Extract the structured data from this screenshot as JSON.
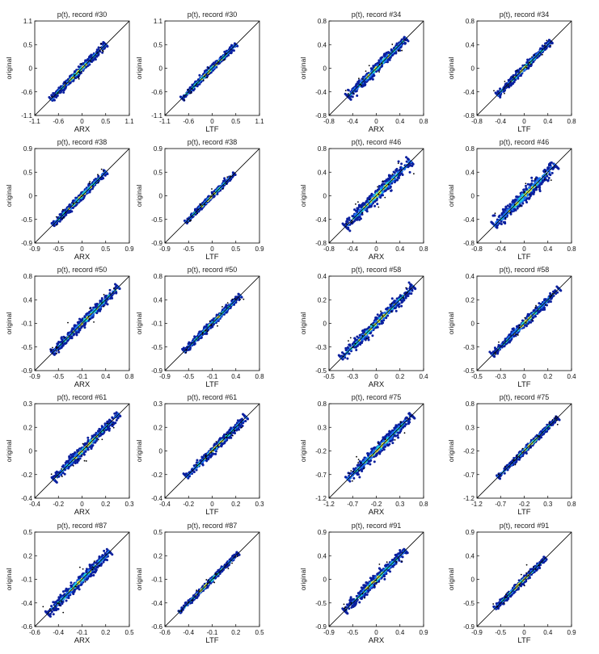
{
  "figure": {
    "rows": 5,
    "cols": 4
  },
  "colors": {
    "density_low": "#0a1f9e",
    "density_mid": "#1e6ff0",
    "density_high": "#22d1d6",
    "density_peak": "#e8f24a",
    "outlier": "#000000",
    "reference_line": "#000000",
    "axes": "#000000"
  },
  "chart_data": [
    {
      "type": "scatter",
      "title": "p(t), record #30",
      "xlabel": "ARX",
      "ylabel": "original",
      "xlim": [
        -1.1,
        1.1
      ],
      "ylim": [
        -1.1,
        1.1
      ],
      "xticks": [
        "-1.1",
        "-0.6",
        "0",
        "0.5",
        "1.1"
      ],
      "yticks": [
        "-1.1",
        "-0.6",
        "0",
        "0.5",
        "1.1"
      ],
      "grid": false,
      "reference_line": "y = x",
      "point_range": [
        -0.72,
        0.55
      ],
      "spread": 0.045
    },
    {
      "type": "scatter",
      "title": "p(t), record #30",
      "xlabel": "LTF",
      "ylabel": "original",
      "xlim": [
        -1.1,
        1.1
      ],
      "ylim": [
        -1.1,
        1.1
      ],
      "xticks": [
        "-1.1",
        "-0.6",
        "0",
        "0.5",
        "1.1"
      ],
      "yticks": [
        "-1.1",
        "-0.6",
        "0",
        "0.5",
        "1.1"
      ],
      "grid": false,
      "reference_line": "y = x",
      "point_range": [
        -0.7,
        0.55
      ],
      "spread": 0.035
    },
    {
      "type": "scatter",
      "title": "p(t), record #34",
      "xlabel": "ARX",
      "ylabel": "original",
      "xlim": [
        -0.8,
        0.8
      ],
      "ylim": [
        -0.8,
        0.8
      ],
      "xticks": [
        "-0.8",
        "-0.4",
        "0",
        "0.4",
        "0.8"
      ],
      "yticks": [
        "-0.8",
        "-0.4",
        "0",
        "0.4",
        "0.8"
      ],
      "grid": false,
      "reference_line": "y = x",
      "point_range": [
        -0.48,
        0.5
      ],
      "spread": 0.04
    },
    {
      "type": "scatter",
      "title": "p(t), record #34",
      "xlabel": "LTF",
      "ylabel": "original",
      "xlim": [
        -0.8,
        0.8
      ],
      "ylim": [
        -0.8,
        0.8
      ],
      "xticks": [
        "-0.8",
        "-0.4",
        "0",
        "0.4",
        "0.8"
      ],
      "yticks": [
        "-0.8",
        "-0.4",
        "0",
        "0.4",
        "0.8"
      ],
      "grid": false,
      "reference_line": "y = x",
      "point_range": [
        -0.45,
        0.45
      ],
      "spread": 0.03
    },
    {
      "type": "scatter",
      "title": "p(t), record #38",
      "xlabel": "ARX",
      "ylabel": "original",
      "xlim": [
        -0.9,
        0.9
      ],
      "ylim": [
        -0.9,
        0.9
      ],
      "xticks": [
        "-0.9",
        "-0.5",
        "0",
        "0.5",
        "0.9"
      ],
      "yticks": [
        "-0.9",
        "-0.5",
        "0",
        "0.5",
        "0.9"
      ],
      "grid": false,
      "reference_line": "y = x",
      "point_range": [
        -0.55,
        0.45
      ],
      "spread": 0.035
    },
    {
      "type": "scatter",
      "title": "p(t), record #38",
      "xlabel": "LTF",
      "ylabel": "original",
      "xlim": [
        -0.9,
        0.9
      ],
      "ylim": [
        -0.9,
        0.9
      ],
      "xticks": [
        "-0.9",
        "-0.5",
        "0",
        "0.5",
        "0.9"
      ],
      "yticks": [
        "-0.9",
        "-0.5",
        "0",
        "0.5",
        "0.9"
      ],
      "grid": false,
      "reference_line": "y = x",
      "point_range": [
        -0.5,
        0.42
      ],
      "spread": 0.025
    },
    {
      "type": "scatter",
      "title": "p(t), record #46",
      "xlabel": "ARX",
      "ylabel": "original",
      "xlim": [
        -0.8,
        0.8
      ],
      "ylim": [
        -0.8,
        0.8
      ],
      "xticks": [
        "-0.8",
        "-0.4",
        "0",
        "0.4",
        "0.8"
      ],
      "yticks": [
        "-0.8",
        "-0.4",
        "0",
        "0.4",
        "0.8"
      ],
      "grid": false,
      "reference_line": "y = x",
      "point_range": [
        -0.52,
        0.58
      ],
      "spread": 0.055
    },
    {
      "type": "scatter",
      "title": "p(t), record #46",
      "xlabel": "LTF",
      "ylabel": "original",
      "xlim": [
        -0.8,
        0.8
      ],
      "ylim": [
        -0.8,
        0.8
      ],
      "xticks": [
        "-0.8",
        "-0.4",
        "0",
        "0.4",
        "0.8"
      ],
      "yticks": [
        "-0.8",
        "-0.4",
        "0",
        "0.4",
        "0.8"
      ],
      "grid": false,
      "reference_line": "y = x",
      "point_range": [
        -0.5,
        0.52
      ],
      "spread": 0.06
    },
    {
      "type": "scatter",
      "title": "p(t), record #50",
      "xlabel": "ARX",
      "ylabel": "original",
      "xlim": [
        -0.9,
        0.8
      ],
      "ylim": [
        -0.9,
        0.8
      ],
      "xticks": [
        "-0.9",
        "-0.5",
        "-0.1",
        "0.4",
        "0.8"
      ],
      "yticks": [
        "-0.9",
        "-0.5",
        "-0.1",
        "0.4",
        "0.8"
      ],
      "grid": false,
      "reference_line": "y = x",
      "point_range": [
        -0.58,
        0.6
      ],
      "spread": 0.045
    },
    {
      "type": "scatter",
      "title": "p(t), record #50",
      "xlabel": "LTF",
      "ylabel": "original",
      "xlim": [
        -0.9,
        0.8
      ],
      "ylim": [
        -0.9,
        0.8
      ],
      "xticks": [
        "-0.9",
        "-0.5",
        "-0.1",
        "0.4",
        "0.8"
      ],
      "yticks": [
        "-0.9",
        "-0.5",
        "-0.1",
        "0.4",
        "0.8"
      ],
      "grid": false,
      "reference_line": "y = x",
      "point_range": [
        -0.55,
        0.45
      ],
      "spread": 0.03
    },
    {
      "type": "scatter",
      "title": "p(t), record #58",
      "xlabel": "ARX",
      "ylabel": "original",
      "xlim": [
        -0.5,
        0.4
      ],
      "ylim": [
        -0.5,
        0.4
      ],
      "xticks": [
        "-0.5",
        "-0.3",
        "0",
        "0.2",
        "0.4"
      ],
      "yticks": [
        "-0.5",
        "-0.3",
        "0",
        "0.2",
        "0.4"
      ],
      "grid": false,
      "reference_line": "y = x",
      "point_range": [
        -0.38,
        0.3
      ],
      "spread": 0.025
    },
    {
      "type": "scatter",
      "title": "p(t), record #58",
      "xlabel": "LTF",
      "ylabel": "original",
      "xlim": [
        -0.5,
        0.4
      ],
      "ylim": [
        -0.5,
        0.4
      ],
      "xticks": [
        "-0.5",
        "-0.3",
        "0",
        "0.2",
        "0.4"
      ],
      "yticks": [
        "-0.5",
        "-0.3",
        "0",
        "0.2",
        "0.4"
      ],
      "grid": false,
      "reference_line": "y = x",
      "point_range": [
        -0.35,
        0.28
      ],
      "spread": 0.02
    },
    {
      "type": "scatter",
      "title": "p(t), record #61",
      "xlabel": "ARX",
      "ylabel": "original",
      "xlim": [
        -0.4,
        0.3
      ],
      "ylim": [
        -0.4,
        0.3
      ],
      "xticks": [
        "-0.4",
        "-0.2",
        "0",
        "0.2",
        "0.3"
      ],
      "yticks": [
        "-0.4",
        "-0.2",
        "0",
        "0.2",
        "0.3"
      ],
      "grid": false,
      "reference_line": "y = x",
      "point_range": [
        -0.26,
        0.22
      ],
      "spread": 0.018
    },
    {
      "type": "scatter",
      "title": "p(t), record #61",
      "xlabel": "LTF",
      "ylabel": "original",
      "xlim": [
        -0.4,
        0.3
      ],
      "ylim": [
        -0.4,
        0.3
      ],
      "xticks": [
        "-0.4",
        "-0.2",
        "0",
        "0.2",
        "0.3"
      ],
      "yticks": [
        "-0.4",
        "-0.2",
        "0",
        "0.2",
        "0.3"
      ],
      "grid": false,
      "reference_line": "y = x",
      "point_range": [
        -0.24,
        0.2
      ],
      "spread": 0.015
    },
    {
      "type": "scatter",
      "title": "p(t), record #75",
      "xlabel": "ARX",
      "ylabel": "original",
      "xlim": [
        -1.2,
        0.8
      ],
      "ylim": [
        -1.2,
        0.8
      ],
      "xticks": [
        "-1.2",
        "-0.7",
        "-0.2",
        "0.3",
        "0.8"
      ],
      "yticks": [
        "-1.2",
        "-0.7",
        "-0.2",
        "0.3",
        "0.8"
      ],
      "grid": false,
      "reference_line": "y = x",
      "point_range": [
        -0.8,
        0.55
      ],
      "spread": 0.06
    },
    {
      "type": "scatter",
      "title": "p(t), record #75",
      "xlabel": "LTF",
      "ylabel": "original",
      "xlim": [
        -1.2,
        0.8
      ],
      "ylim": [
        -1.2,
        0.8
      ],
      "xticks": [
        "-1.2",
        "-0.7",
        "-0.2",
        "0.3",
        "0.8"
      ],
      "yticks": [
        "-1.2",
        "-0.7",
        "-0.2",
        "0.3",
        "0.8"
      ],
      "grid": false,
      "reference_line": "y = x",
      "point_range": [
        -0.75,
        0.5
      ],
      "spread": 0.03
    },
    {
      "type": "scatter",
      "title": "p(t), record #87",
      "xlabel": "ARX",
      "ylabel": "original",
      "xlim": [
        -0.6,
        0.5
      ],
      "ylim": [
        -0.6,
        0.5
      ],
      "xticks": [
        "-0.6",
        "-0.4",
        "-0.1",
        "0.2",
        "0.5"
      ],
      "yticks": [
        "-0.6",
        "-0.4",
        "-0.1",
        "0.2",
        "0.5"
      ],
      "grid": false,
      "reference_line": "y = x",
      "point_range": [
        -0.45,
        0.27
      ],
      "spread": 0.03
    },
    {
      "type": "scatter",
      "title": "p(t), record #87",
      "xlabel": "LTF",
      "ylabel": "original",
      "xlim": [
        -0.6,
        0.5
      ],
      "ylim": [
        -0.6,
        0.5
      ],
      "xticks": [
        "-0.6",
        "-0.4",
        "-0.1",
        "0.2",
        "0.5"
      ],
      "yticks": [
        "-0.6",
        "-0.4",
        "-0.1",
        "0.2",
        "0.5"
      ],
      "grid": false,
      "reference_line": "y = x",
      "point_range": [
        -0.43,
        0.25
      ],
      "spread": 0.015
    },
    {
      "type": "scatter",
      "title": "p(t), record #91",
      "xlabel": "ARX",
      "ylabel": "original",
      "xlim": [
        -0.9,
        0.9
      ],
      "ylim": [
        -0.9,
        0.9
      ],
      "xticks": [
        "-0.9",
        "-0.5",
        "0",
        "0.4",
        "0.9"
      ],
      "yticks": [
        "-0.9",
        "-0.5",
        "0",
        "0.4",
        "0.9"
      ],
      "grid": false,
      "reference_line": "y = x",
      "point_range": [
        -0.6,
        0.55
      ],
      "spread": 0.05
    },
    {
      "type": "scatter",
      "title": "p(t), record #91",
      "xlabel": "LTF",
      "ylabel": "original",
      "xlim": [
        -0.9,
        0.9
      ],
      "ylim": [
        -0.9,
        0.9
      ],
      "xticks": [
        "-0.9",
        "-0.5",
        "0",
        "0.4",
        "0.9"
      ],
      "yticks": [
        "-0.9",
        "-0.5",
        "0",
        "0.4",
        "0.9"
      ],
      "grid": false,
      "reference_line": "y = x",
      "point_range": [
        -0.55,
        0.4
      ],
      "spread": 0.03
    }
  ]
}
